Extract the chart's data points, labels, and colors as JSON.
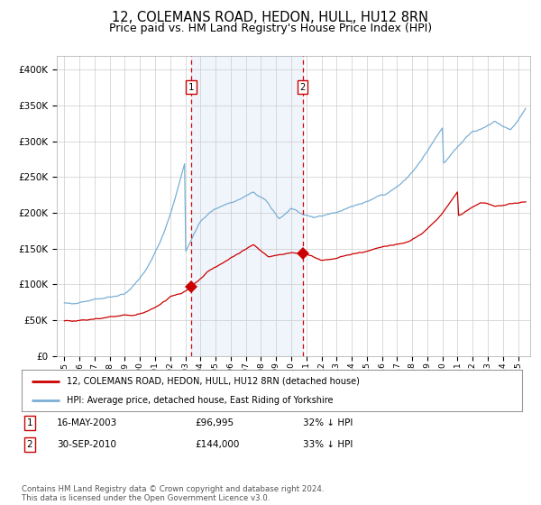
{
  "title": "12, COLEMANS ROAD, HEDON, HULL, HU12 8RN",
  "subtitle": "Price paid vs. HM Land Registry's House Price Index (HPI)",
  "title_fontsize": 10.5,
  "subtitle_fontsize": 9,
  "background_color": "#ffffff",
  "plot_bg_color": "#ffffff",
  "grid_color": "#cccccc",
  "red_line_color": "#cc0000",
  "blue_line_color": "#7aafd4",
  "shade_color": "#ddeeff",
  "ylim": [
    0,
    420000
  ],
  "yticks": [
    0,
    50000,
    100000,
    150000,
    200000,
    250000,
    300000,
    350000,
    400000
  ],
  "ytick_labels": [
    "£0",
    "£50K",
    "£100K",
    "£150K",
    "£200K",
    "£250K",
    "£300K",
    "£350K",
    "£400K"
  ],
  "sale1_x": 2003.37,
  "sale1_y": 96995,
  "sale2_x": 2010.75,
  "sale2_y": 144000,
  "shade_x1": 2003.37,
  "shade_x2": 2010.75,
  "legend_line1": "12, COLEMANS ROAD, HEDON, HULL, HU12 8RN (detached house)",
  "legend_line2": "HPI: Average price, detached house, East Riding of Yorkshire",
  "table_rows": [
    [
      "1",
      "16-MAY-2003",
      "£96,995",
      "32% ↓ HPI"
    ],
    [
      "2",
      "30-SEP-2010",
      "£144,000",
      "33% ↓ HPI"
    ]
  ],
  "footer": "Contains HM Land Registry data © Crown copyright and database right 2024.\nThis data is licensed under the Open Government Licence v3.0.",
  "xlim_start": 1994.5,
  "xlim_end": 2025.8
}
